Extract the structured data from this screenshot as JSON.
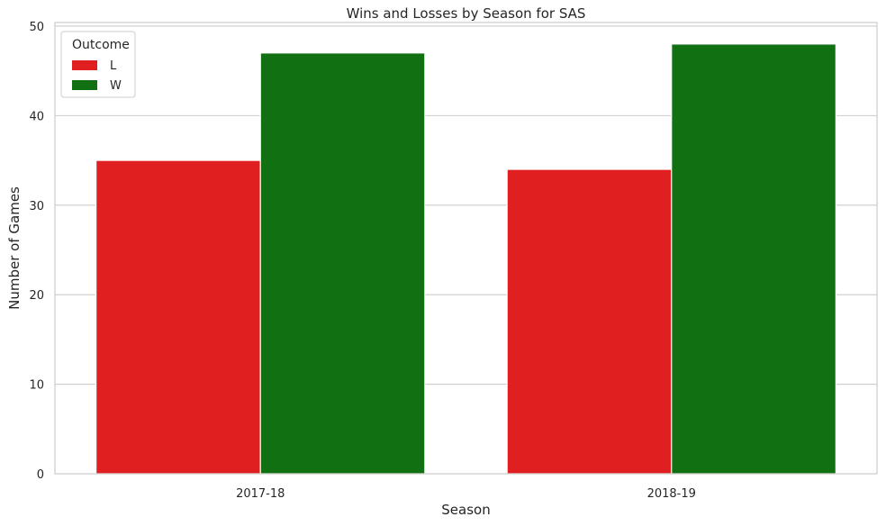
{
  "chart_data": {
    "type": "bar",
    "title": "Wins and Losses by Season for SAS",
    "xlabel": "Season",
    "ylabel": "Number of Games",
    "categories": [
      "2017-18",
      "2018-19"
    ],
    "series": [
      {
        "name": "L",
        "values": [
          35,
          34
        ],
        "color": "#e02020"
      },
      {
        "name": "W",
        "values": [
          47,
          48
        ],
        "color": "#117011"
      }
    ],
    "ylim": [
      0,
      50.4
    ],
    "yticks": [
      0,
      10,
      20,
      30,
      40,
      50
    ],
    "grid": true,
    "legend": {
      "title": "Outcome",
      "position": "top-left"
    }
  }
}
